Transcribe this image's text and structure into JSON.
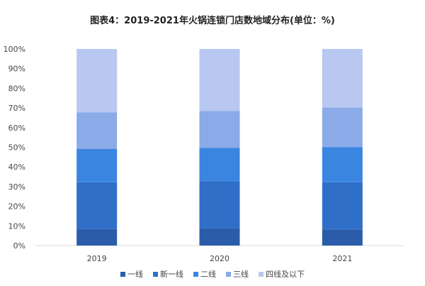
{
  "chart_data": {
    "type": "bar",
    "stacked": true,
    "title": "图表4：2019-2021年火锅连锁门店数地域分布(单位：%)",
    "categories": [
      "2019",
      "2020",
      "2021"
    ],
    "series": [
      {
        "name": "一线",
        "color": "#2a5caa",
        "values": [
          8.4,
          8.8,
          8.2
        ]
      },
      {
        "name": "新一线",
        "color": "#2f6fc8",
        "values": [
          23.8,
          23.9,
          24.0
        ]
      },
      {
        "name": "二线",
        "color": "#3a85e0",
        "values": [
          16.9,
          17.0,
          17.9
        ]
      },
      {
        "name": "三线",
        "color": "#8aaae8",
        "values": [
          18.7,
          18.7,
          20.1
        ]
      },
      {
        "name": "四线及以下",
        "color": "#b8c8f0",
        "values": [
          32.2,
          31.6,
          29.8
        ]
      }
    ],
    "yticks": [
      "0%",
      "10%",
      "20%",
      "30%",
      "40%",
      "50%",
      "60%",
      "70%",
      "80%",
      "90%",
      "100%"
    ],
    "ylim": [
      0,
      100
    ],
    "grid": false,
    "legend": "bottom"
  }
}
